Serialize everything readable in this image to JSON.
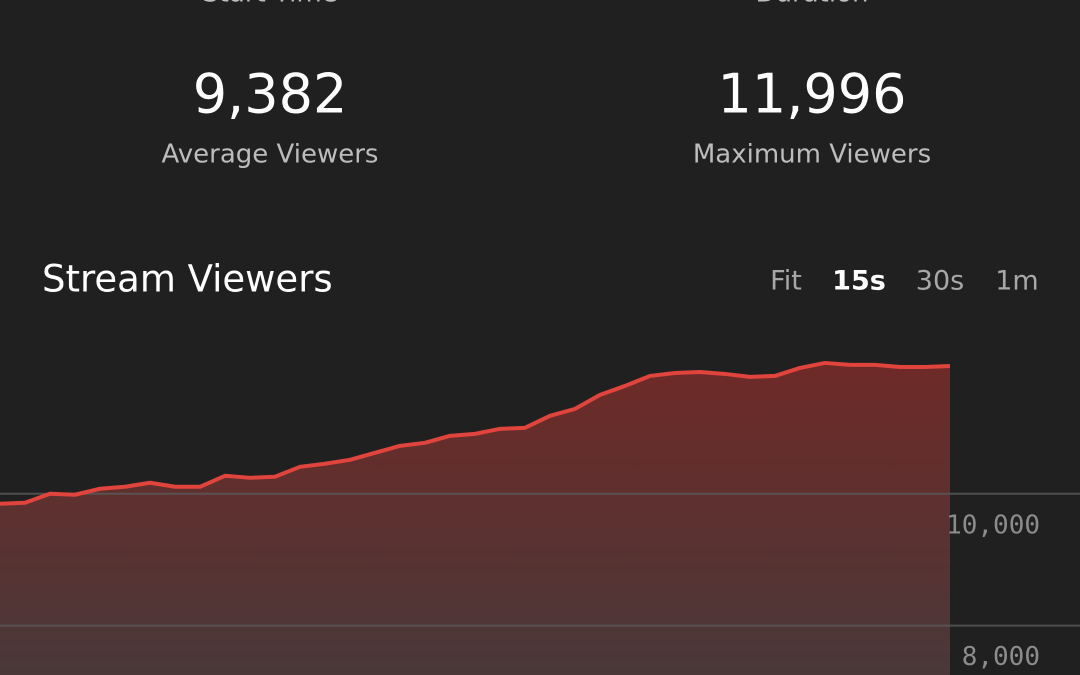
{
  "stats": [
    {
      "label": "Start Time"
    },
    {
      "label": "Duration"
    },
    {
      "value": "9,382",
      "label": "Average Viewers"
    },
    {
      "value": "11,996",
      "label": "Maximum Viewers"
    }
  ],
  "tabs": [
    "Fit",
    "15s",
    "30s",
    "1m"
  ],
  "active_tab": 1,
  "chart_data": {
    "type": "area",
    "title": "Stream Viewers",
    "color": "#e0443c",
    "values": [
      9848,
      9864,
      10000,
      9985,
      10076,
      10106,
      10167,
      10106,
      10106,
      10273,
      10242,
      10258,
      10409,
      10455,
      10515,
      10621,
      10727,
      10773,
      10879,
      10909,
      10985,
      11000,
      11182,
      11288,
      11500,
      11636,
      11788,
      11833,
      11848,
      11818,
      11773,
      11788,
      11909,
      11985,
      11955,
      11955,
      11924,
      11924,
      11939
    ],
    "ylim": [
      7250,
      12500
    ],
    "yticks": [
      {
        "value": 10000,
        "label": "10,000"
      },
      {
        "value": 8000,
        "label": "8,000"
      }
    ],
    "grid": true
  }
}
